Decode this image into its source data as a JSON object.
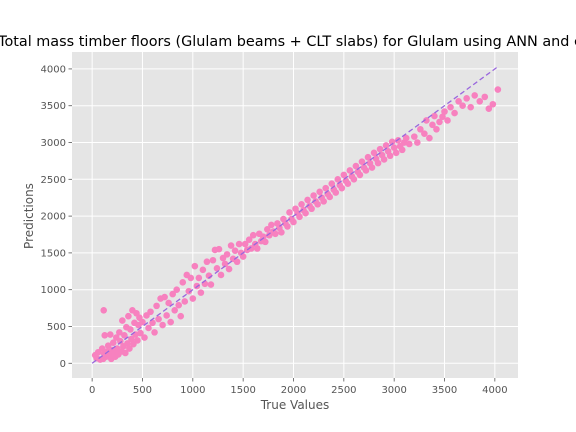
{
  "chart_data": {
    "type": "scatter",
    "title": "Total mass timber floors (Glulam beams + CLT slabs) for Glulam using ANN and c",
    "xlabel": "True Values",
    "ylabel": "Predictions",
    "xlim": [
      -200,
      4230
    ],
    "ylim": [
      -200,
      4230
    ],
    "xticks": [
      0,
      500,
      1000,
      1500,
      2000,
      2500,
      3000,
      3500,
      4000
    ],
    "yticks": [
      0,
      500,
      1000,
      1500,
      2000,
      2500,
      3000,
      3500,
      4000
    ],
    "grid": true,
    "series": [
      {
        "kind": "points",
        "color": "#f781bf",
        "points": [
          [
            30,
            110
          ],
          [
            45,
            70
          ],
          [
            60,
            150
          ],
          [
            80,
            50
          ],
          [
            100,
            200
          ],
          [
            110,
            60
          ],
          [
            115,
            720
          ],
          [
            120,
            130
          ],
          [
            125,
            380
          ],
          [
            140,
            90
          ],
          [
            150,
            160
          ],
          [
            160,
            240
          ],
          [
            170,
            110
          ],
          [
            180,
            390
          ],
          [
            190,
            60
          ],
          [
            200,
            180
          ],
          [
            210,
            280
          ],
          [
            220,
            140
          ],
          [
            230,
            90
          ],
          [
            240,
            350
          ],
          [
            250,
            200
          ],
          [
            260,
            120
          ],
          [
            270,
            420
          ],
          [
            280,
            300
          ],
          [
            290,
            160
          ],
          [
            300,
            580
          ],
          [
            310,
            230
          ],
          [
            320,
            380
          ],
          [
            330,
            140
          ],
          [
            340,
            490
          ],
          [
            350,
            270
          ],
          [
            360,
            640
          ],
          [
            370,
            200
          ],
          [
            380,
            460
          ],
          [
            390,
            330
          ],
          [
            400,
            720
          ],
          [
            410,
            260
          ],
          [
            420,
            550
          ],
          [
            430,
            390
          ],
          [
            440,
            680
          ],
          [
            450,
            310
          ],
          [
            460,
            520
          ],
          [
            470,
            620
          ],
          [
            480,
            410
          ],
          [
            500,
            560
          ],
          [
            520,
            350
          ],
          [
            540,
            650
          ],
          [
            560,
            480
          ],
          [
            580,
            700
          ],
          [
            600,
            550
          ],
          [
            620,
            420
          ],
          [
            640,
            780
          ],
          [
            660,
            600
          ],
          [
            680,
            880
          ],
          [
            700,
            520
          ],
          [
            720,
            900
          ],
          [
            740,
            650
          ],
          [
            760,
            820
          ],
          [
            780,
            560
          ],
          [
            800,
            940
          ],
          [
            820,
            720
          ],
          [
            840,
            1000
          ],
          [
            860,
            790
          ],
          [
            880,
            640
          ],
          [
            900,
            1100
          ],
          [
            920,
            840
          ],
          [
            940,
            1200
          ],
          [
            960,
            980
          ],
          [
            980,
            1160
          ],
          [
            1000,
            880
          ],
          [
            1020,
            1320
          ],
          [
            1040,
            1050
          ],
          [
            1060,
            1160
          ],
          [
            1080,
            960
          ],
          [
            1100,
            1270
          ],
          [
            1120,
            1080
          ],
          [
            1140,
            1380
          ],
          [
            1160,
            1190
          ],
          [
            1180,
            1070
          ],
          [
            1200,
            1400
          ],
          [
            1220,
            1540
          ],
          [
            1240,
            1290
          ],
          [
            1260,
            1550
          ],
          [
            1280,
            1200
          ],
          [
            1300,
            1430
          ],
          [
            1320,
            1350
          ],
          [
            1340,
            1480
          ],
          [
            1360,
            1280
          ],
          [
            1380,
            1600
          ],
          [
            1400,
            1420
          ],
          [
            1420,
            1530
          ],
          [
            1440,
            1380
          ],
          [
            1460,
            1620
          ],
          [
            1480,
            1500
          ],
          [
            1500,
            1450
          ],
          [
            1520,
            1620
          ],
          [
            1540,
            1540
          ],
          [
            1560,
            1680
          ],
          [
            1580,
            1560
          ],
          [
            1600,
            1740
          ],
          [
            1620,
            1620
          ],
          [
            1640,
            1560
          ],
          [
            1660,
            1760
          ],
          [
            1680,
            1660
          ],
          [
            1700,
            1720
          ],
          [
            1720,
            1650
          ],
          [
            1740,
            1820
          ],
          [
            1760,
            1740
          ],
          [
            1780,
            1880
          ],
          [
            1800,
            1790
          ],
          [
            1820,
            1760
          ],
          [
            1840,
            1900
          ],
          [
            1860,
            1840
          ],
          [
            1880,
            1780
          ],
          [
            1900,
            1960
          ],
          [
            1920,
            1900
          ],
          [
            1940,
            1860
          ],
          [
            1960,
            2050
          ],
          [
            1980,
            1960
          ],
          [
            2000,
            1920
          ],
          [
            2020,
            2100
          ],
          [
            2040,
            2040
          ],
          [
            2060,
            1990
          ],
          [
            2080,
            2160
          ],
          [
            2100,
            2080
          ],
          [
            2120,
            2040
          ],
          [
            2140,
            2220
          ],
          [
            2160,
            2140
          ],
          [
            2180,
            2100
          ],
          [
            2200,
            2280
          ],
          [
            2220,
            2200
          ],
          [
            2240,
            2160
          ],
          [
            2260,
            2330
          ],
          [
            2280,
            2250
          ],
          [
            2300,
            2200
          ],
          [
            2320,
            2380
          ],
          [
            2340,
            2300
          ],
          [
            2360,
            2260
          ],
          [
            2380,
            2440
          ],
          [
            2400,
            2360
          ],
          [
            2420,
            2320
          ],
          [
            2440,
            2500
          ],
          [
            2460,
            2420
          ],
          [
            2480,
            2380
          ],
          [
            2500,
            2560
          ],
          [
            2520,
            2480
          ],
          [
            2540,
            2440
          ],
          [
            2560,
            2620
          ],
          [
            2580,
            2540
          ],
          [
            2600,
            2500
          ],
          [
            2620,
            2680
          ],
          [
            2640,
            2600
          ],
          [
            2660,
            2560
          ],
          [
            2680,
            2740
          ],
          [
            2700,
            2660
          ],
          [
            2720,
            2620
          ],
          [
            2740,
            2800
          ],
          [
            2760,
            2720
          ],
          [
            2780,
            2660
          ],
          [
            2800,
            2860
          ],
          [
            2820,
            2780
          ],
          [
            2840,
            2720
          ],
          [
            2860,
            2910
          ],
          [
            2880,
            2830
          ],
          [
            2900,
            2770
          ],
          [
            2920,
            2960
          ],
          [
            2940,
            2880
          ],
          [
            2960,
            2820
          ],
          [
            2980,
            3010
          ],
          [
            3000,
            2930
          ],
          [
            3020,
            2860
          ],
          [
            3040,
            3030
          ],
          [
            3060,
            2950
          ],
          [
            3080,
            2900
          ],
          [
            3100,
            3000
          ],
          [
            3120,
            3060
          ],
          [
            3150,
            2980
          ],
          [
            3200,
            3080
          ],
          [
            3230,
            3000
          ],
          [
            3260,
            3180
          ],
          [
            3300,
            3120
          ],
          [
            3320,
            3300
          ],
          [
            3350,
            3060
          ],
          [
            3380,
            3240
          ],
          [
            3400,
            3360
          ],
          [
            3420,
            3180
          ],
          [
            3450,
            3280
          ],
          [
            3480,
            3350
          ],
          [
            3500,
            3420
          ],
          [
            3530,
            3300
          ],
          [
            3560,
            3480
          ],
          [
            3600,
            3400
          ],
          [
            3640,
            3560
          ],
          [
            3680,
            3500
          ],
          [
            3720,
            3600
          ],
          [
            3760,
            3480
          ],
          [
            3800,
            3640
          ],
          [
            3850,
            3560
          ],
          [
            3900,
            3620
          ],
          [
            3940,
            3460
          ],
          [
            3980,
            3520
          ],
          [
            4030,
            3720
          ]
        ]
      },
      {
        "kind": "reference-line",
        "style": "dashed",
        "color": "#9966dd",
        "x": [
          0,
          4030
        ],
        "y": [
          0,
          4030
        ]
      }
    ]
  }
}
